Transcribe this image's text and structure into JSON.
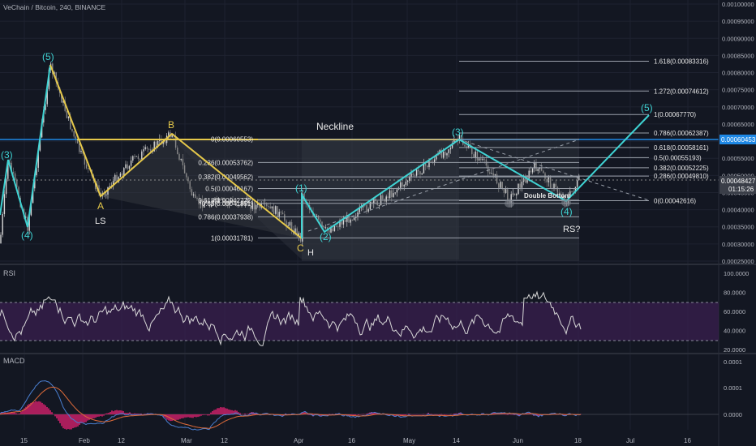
{
  "header": {
    "title": "VeChain / Bitcoin, 240, BINANCE"
  },
  "colors": {
    "background": "#131722",
    "grid": "#1e2230",
    "text": "#b2b5be",
    "price_line": "#1e88e5",
    "yellow": "#e5c84a",
    "cyan": "#3fd3d3",
    "candle_up": "#d8d8d8",
    "candle_down": "#8a8a8a",
    "rsi_line": "#d8d8d8",
    "rsi_band": "#3a1f4f",
    "macd_line": "#4a7fd1",
    "signal_line": "#e06c3a",
    "histogram": "#d0206a"
  },
  "price_axis": {
    "ticks": [
      "0.00100000",
      "0.00095000",
      "0.00090000",
      "0.00085000",
      "0.00080000",
      "0.00075000",
      "0.00070000",
      "0.00065000",
      "0.00060000",
      "0.00055000",
      "0.00050000",
      "0.00045000",
      "0.00040000",
      "0.00035000",
      "0.00030000",
      "0.00025000"
    ],
    "current_price": "0.00048427",
    "countdown": "01:15:26",
    "blue_line_label": "0.00060453"
  },
  "time_axis": {
    "labels": [
      "15",
      "Feb",
      "12",
      "Mar",
      "12",
      "Apr",
      "16",
      "May",
      "14",
      "Jun",
      "18",
      "Jul",
      "16"
    ]
  },
  "fib_retracement": [
    {
      "level": "0(0.00060553)",
      "value": 0.00060553
    },
    {
      "level": "0.236(0.00053762)",
      "value": 0.00053762
    },
    {
      "level": "0.382(0.00049562)",
      "value": 0.00049562
    },
    {
      "level": "0.5(0.00046167)",
      "value": 0.00046167
    },
    {
      "level": "0.618(0.00042772)",
      "value": 0.00042772
    },
    {
      "level": "0.65(0.00041851)",
      "value": 0.00041851
    },
    {
      "level": "0.786(0.00037938)",
      "value": 0.00037938
    },
    {
      "level": "1(0.00031781)",
      "value": 0.00031781
    }
  ],
  "fib_extension": [
    {
      "level": "1.618(0.00083316)",
      "value": 0.00083316
    },
    {
      "level": "1.272(0.00074612)",
      "value": 0.00074612
    },
    {
      "level": "1(0.00067770)",
      "value": 0.0006777
    },
    {
      "level": "0.786(0.00062387)",
      "value": 0.00062387
    },
    {
      "level": "0.618(0.00058161)",
      "value": 0.00058161
    },
    {
      "level": "0.5(0.00055193)",
      "value": 0.00055193
    },
    {
      "level": "0.382(0.00052225)",
      "value": 0.00052225
    },
    {
      "level": "0.286(0.00049810)",
      "value": 0.0004981
    },
    {
      "level": "0(0.00042616)",
      "value": 0.00042616
    }
  ],
  "annotations": {
    "neckline": "Neckline",
    "double_bottom": "Double Bottom",
    "ls": "LS",
    "h": "H",
    "rs": "RS?",
    "a": "A",
    "b": "B",
    "c": "C",
    "w3_left": "(3)",
    "w4_left": "(4)",
    "w5_left": "(5)",
    "w1": "(1)",
    "w2": "(2)",
    "w3": "(3)",
    "w4": "(4)",
    "w5": "(5)"
  },
  "rsi_panel": {
    "label": "RSI",
    "ticks": [
      "100.0000",
      "80.0000",
      "60.0000",
      "40.0000",
      "20.0000"
    ],
    "upper_band": 70,
    "lower_band": 30
  },
  "macd_panel": {
    "label": "MACD",
    "ticks": [
      "0.0001",
      "0.0001",
      "0.0000"
    ]
  },
  "chart_data": {
    "type": "line",
    "title": "VeChain / Bitcoin, 240, BINANCE",
    "ylim": [
      0.000232,
      0.001
    ],
    "abc_correction": [
      {
        "label": "(5)",
        "date": "Jan 20",
        "price": 0.00082
      },
      {
        "label": "A",
        "date": "Feb 1",
        "price": 0.00043
      },
      {
        "label": "B",
        "date": "Feb 27",
        "price": 0.000615
      },
      {
        "label": "C",
        "date": "Apr 1",
        "price": 0.000318
      }
    ],
    "impulse_wave": [
      {
        "label": "C",
        "date": "Apr 1",
        "price": 0.000318
      },
      {
        "label": "(1)",
        "date": "Apr 1",
        "price": 0.000438
      },
      {
        "label": "(2)",
        "date": "Apr 8",
        "price": 0.000365
      },
      {
        "label": "(3)",
        "date": "May 14",
        "price": 0.000608
      },
      {
        "label": "(4)",
        "date": "Jun 15",
        "price": 0.000426
      },
      {
        "label": "(5)",
        "date": "Jul 10",
        "price": 0.000678
      }
    ],
    "neckline": 0.00060553,
    "current_price": 0.00048427,
    "rsi_range": [
      20,
      100
    ],
    "macd_range": [
      -2e-05,
      0.00012
    ]
  }
}
